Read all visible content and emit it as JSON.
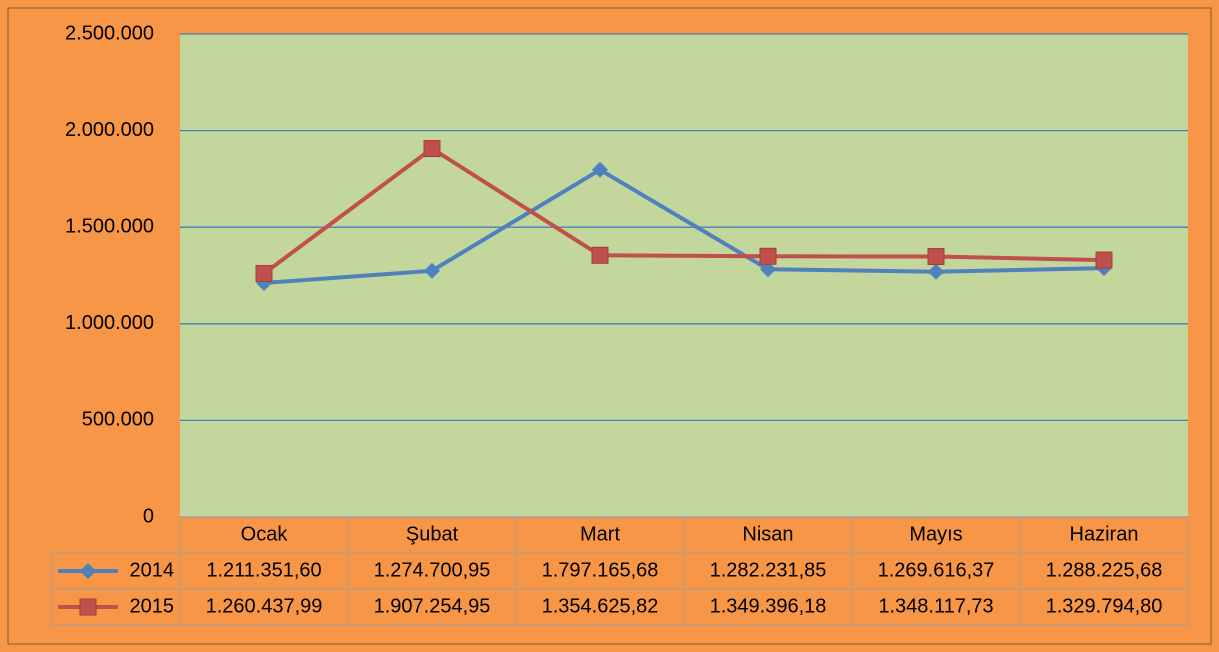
{
  "chart_data": {
    "type": "line",
    "categories": [
      "Ocak",
      "Şubat",
      "Mart",
      "Nisan",
      "Mayıs",
      "Haziran"
    ],
    "series": [
      {
        "name": "2014",
        "color": "#4f81bd",
        "marker": "diamond",
        "values": [
          1211351.6,
          1274700.95,
          1797165.68,
          1282231.85,
          1269616.37,
          1288225.68
        ],
        "value_labels": [
          "1.211.351,60",
          "1.274.700,95",
          "1.797.165,68",
          "1.282.231,85",
          "1.269.616,37",
          "1.288.225,68"
        ]
      },
      {
        "name": "2015",
        "color": "#c0504d",
        "marker": "square",
        "values": [
          1260437.99,
          1907254.95,
          1354625.82,
          1349396.18,
          1348117.73,
          1329794.8
        ],
        "value_labels": [
          "1.260.437,99",
          "1.907.254,95",
          "1.354.625,82",
          "1.349.396,18",
          "1.348.117,73",
          "1.329.794,80"
        ]
      }
    ],
    "ylim": [
      0,
      2500000
    ],
    "yticks": [
      0,
      {
        "value": 500000,
        "label": "500.000"
      },
      {
        "value": 1000000,
        "label": "1.000.000"
      },
      {
        "value": 1500000,
        "label": "1.500.000"
      },
      {
        "value": 2000000,
        "label": "2.000.000"
      },
      {
        "value": 2500000,
        "label": "2.500.000"
      }
    ],
    "grid": true,
    "data_table": true
  }
}
